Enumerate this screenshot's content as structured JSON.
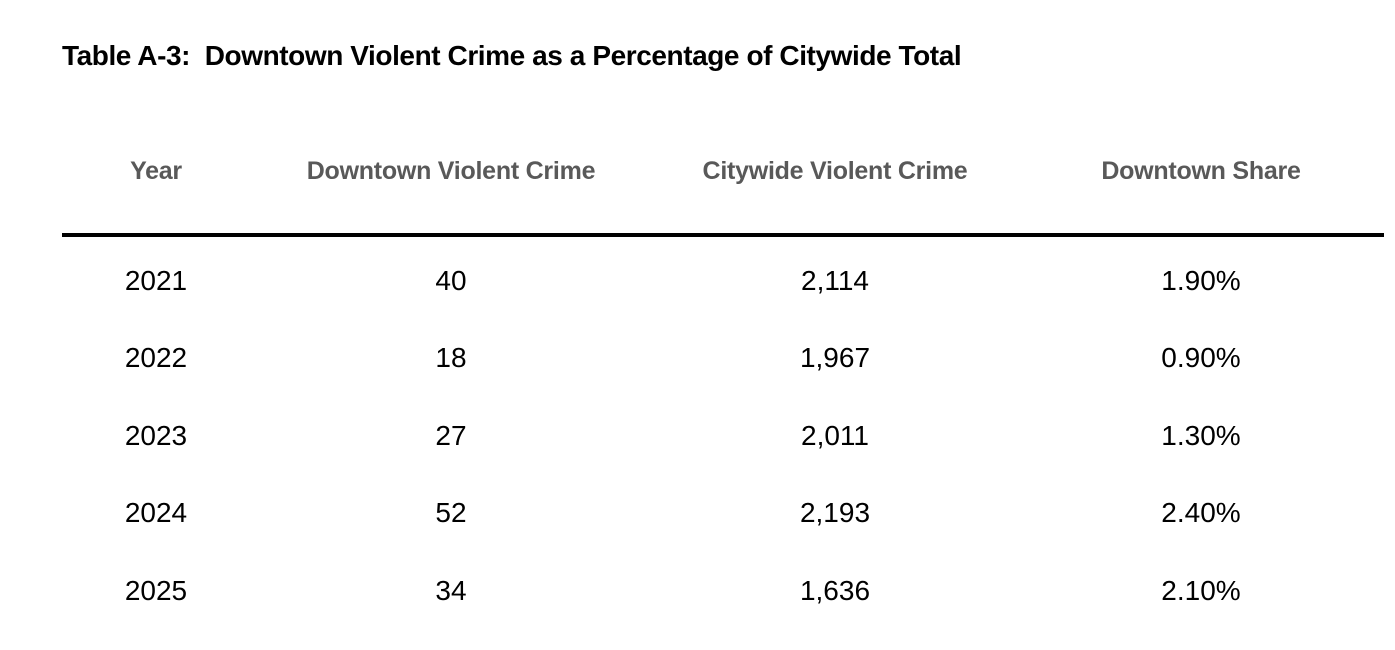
{
  "title": "Table A-3:  Downtown Violent Crime as a Percentage of Citywide Total",
  "colors": {
    "background": "#ffffff",
    "title_text": "#000000",
    "header_text": "#595959",
    "body_text": "#000000",
    "rule": "#000000"
  },
  "table": {
    "columns": [
      {
        "label": "Year"
      },
      {
        "label": "Downtown Violent Crime"
      },
      {
        "label": "Citywide Violent Crime"
      },
      {
        "label": "Downtown Share"
      }
    ],
    "rows": [
      {
        "year": "2021",
        "downtown_violent_crime": "40",
        "citywide_violent_crime": "2,114",
        "downtown_share": "1.90%"
      },
      {
        "year": "2022",
        "downtown_violent_crime": "18",
        "citywide_violent_crime": "1,967",
        "downtown_share": "0.90%"
      },
      {
        "year": "2023",
        "downtown_violent_crime": "27",
        "citywide_violent_crime": "2,011",
        "downtown_share": "1.30%"
      },
      {
        "year": "2024",
        "downtown_violent_crime": "52",
        "citywide_violent_crime": "2,193",
        "downtown_share": "2.40%"
      },
      {
        "year": "2025",
        "downtown_violent_crime": "34",
        "citywide_violent_crime": "1,636",
        "downtown_share": "2.10%"
      }
    ]
  }
}
